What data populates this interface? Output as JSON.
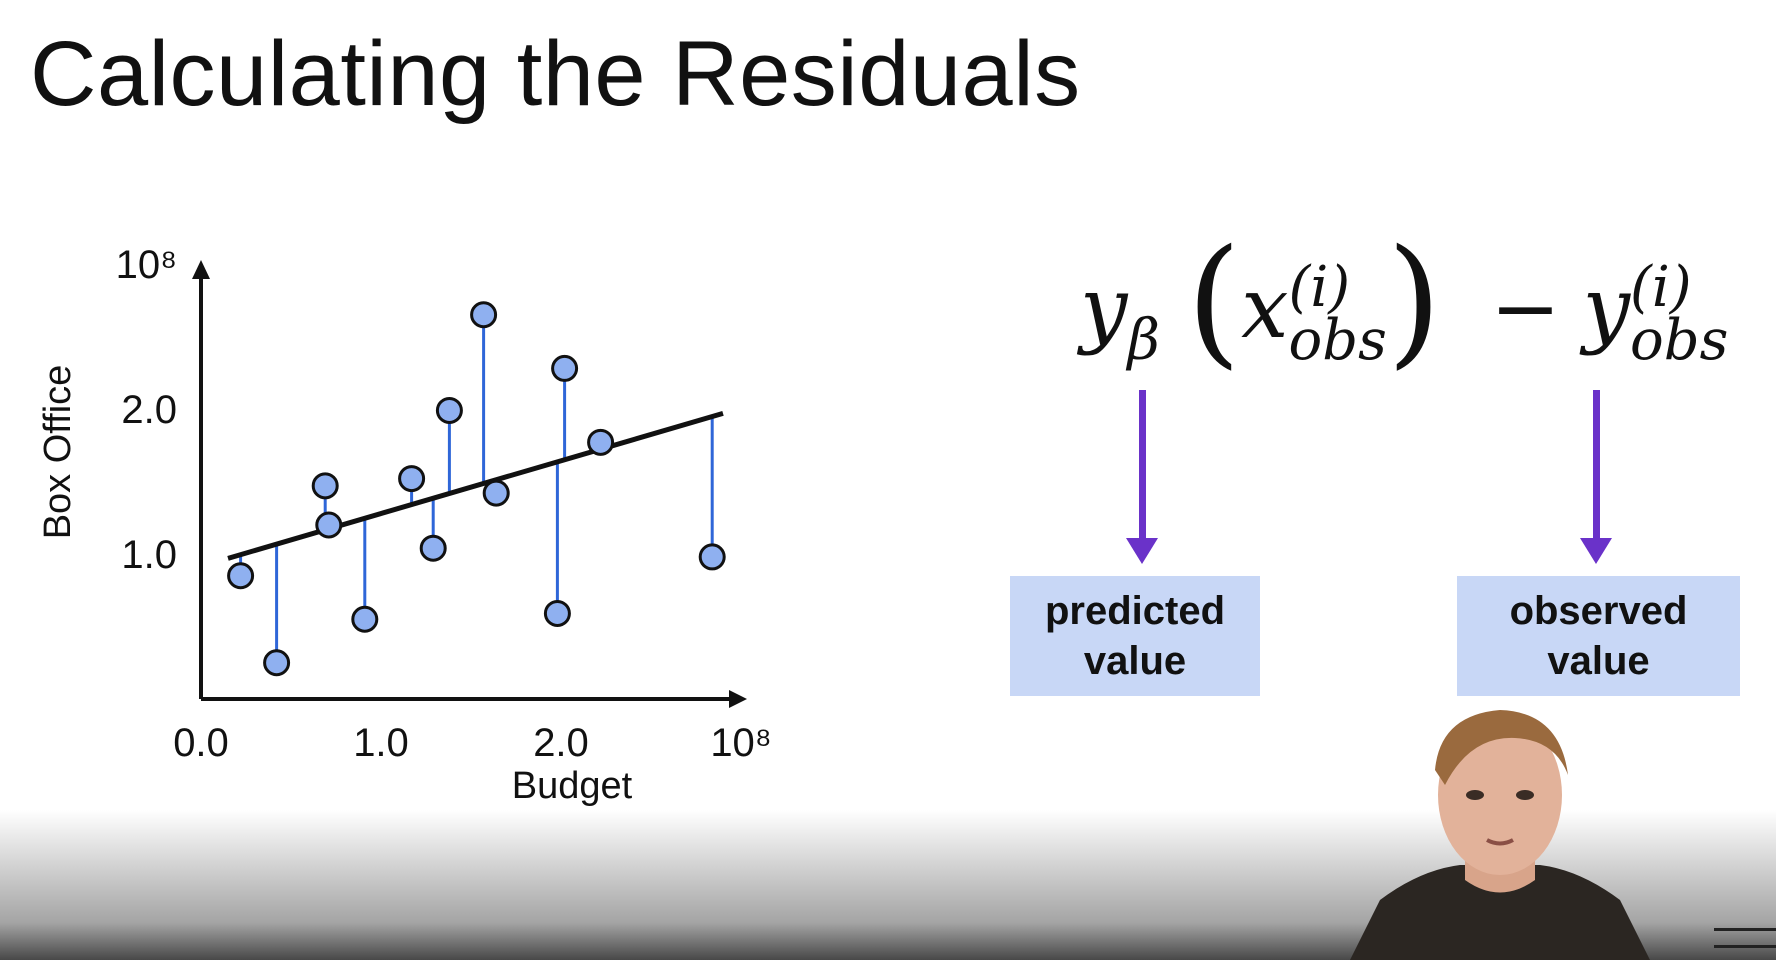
{
  "slide": {
    "title": "Calculating the Residuals"
  },
  "chart_data": {
    "type": "scatter",
    "xlabel": "Budget",
    "ylabel": "Box Office",
    "x_ticks": [
      {
        "value": 0.0,
        "label": "0.0"
      },
      {
        "value": 1.0,
        "label": "1.0"
      },
      {
        "value": 2.0,
        "label": "2.0"
      },
      {
        "value": 3.0,
        "label": "10⁸"
      }
    ],
    "y_ticks": [
      {
        "value": 1.0,
        "label": "1.0"
      },
      {
        "value": 2.0,
        "label": "2.0"
      },
      {
        "value": 3.0,
        "label": "10⁸"
      }
    ],
    "xlim": [
      0,
      3.05
    ],
    "ylim": [
      0,
      3.0
    ],
    "grid": false,
    "regression_line": {
      "x": [
        0.15,
        2.9
      ],
      "y": [
        0.97,
        1.97
      ]
    },
    "points": [
      {
        "x": 0.22,
        "y": 0.85
      },
      {
        "x": 0.42,
        "y": 0.25
      },
      {
        "x": 0.69,
        "y": 1.47
      },
      {
        "x": 0.71,
        "y": 1.2
      },
      {
        "x": 0.91,
        "y": 0.55
      },
      {
        "x": 1.17,
        "y": 1.52
      },
      {
        "x": 1.29,
        "y": 1.04
      },
      {
        "x": 1.38,
        "y": 1.99
      },
      {
        "x": 1.57,
        "y": 2.65
      },
      {
        "x": 1.64,
        "y": 1.42
      },
      {
        "x": 1.98,
        "y": 0.59
      },
      {
        "x": 2.02,
        "y": 2.28
      },
      {
        "x": 2.22,
        "y": 1.77
      },
      {
        "x": 2.84,
        "y": 0.98
      }
    ]
  },
  "formula": {
    "y": "y",
    "beta": "β",
    "open_paren": "(",
    "x": "x",
    "sup_i": "(i)",
    "sub_obs": "obs",
    "close_paren": ")",
    "minus": "−",
    "y2": "y",
    "sup_i2": "(i)",
    "sub_obs2": "obs"
  },
  "boxes": {
    "predicted_line1": "predicted",
    "predicted_line2": "value",
    "observed_line1": "observed",
    "observed_line2": "value"
  },
  "colors": {
    "point_fill": "#8fb0f0",
    "residual_line": "#2f66d8",
    "arrow": "#6a32c9",
    "box_fill": "#c8d7f6"
  }
}
